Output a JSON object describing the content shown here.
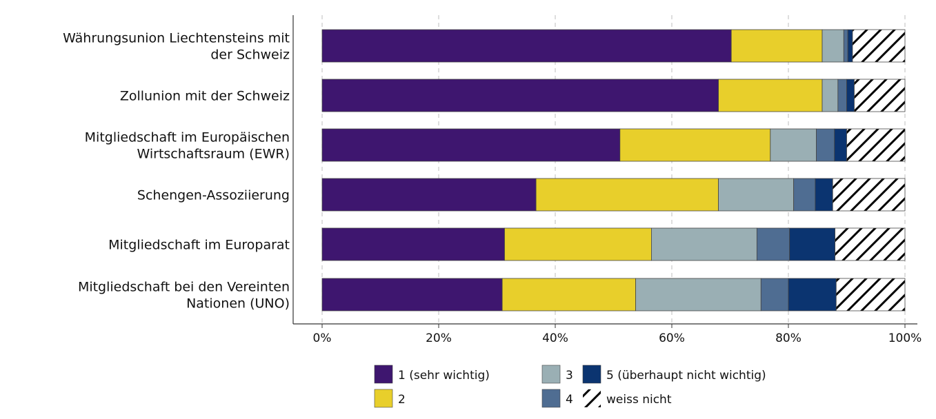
{
  "chart_data": {
    "type": "bar",
    "orientation": "horizontal",
    "stacked": true,
    "percent_scale": true,
    "categories": [
      "Währungsunion Liechtensteins mit der Schweiz",
      "Zollunion mit der Schweiz",
      "Mitgliedschaft im Europäischen Wirtschaftsraum (EWR)",
      "Schengen-Assoziierung",
      "Mitgliedschaft im Europarat",
      "Mitgliedschaft bei den Vereinten Nationen (UNO)"
    ],
    "series": [
      {
        "name": "1 (sehr wichtig)",
        "color": "#3e166f",
        "values": [
          70.2,
          68.0,
          51.1,
          36.7,
          31.3,
          30.9
        ]
      },
      {
        "name": "2",
        "color": "#e8cf2b",
        "values": [
          15.6,
          17.8,
          25.8,
          31.3,
          25.2,
          22.9
        ]
      },
      {
        "name": "3",
        "color": "#9aafb4",
        "values": [
          3.7,
          2.7,
          7.9,
          12.9,
          18.1,
          21.5
        ]
      },
      {
        "name": "4",
        "color": "#4f6d92",
        "values": [
          0.7,
          1.5,
          3.1,
          3.7,
          5.6,
          4.7
        ]
      },
      {
        "name": "5 (überhaupt nicht wichtig)",
        "color": "#0b3470",
        "values": [
          0.8,
          1.3,
          2.1,
          3.0,
          7.8,
          8.2
        ]
      },
      {
        "name": "weiss nicht",
        "color": "#ffffff",
        "pattern": "hatch",
        "values": [
          9.0,
          8.7,
          10.0,
          12.4,
          12.0,
          11.8
        ]
      }
    ],
    "xlim": [
      0,
      100
    ],
    "x_ticks": [
      0,
      20,
      40,
      60,
      80,
      100
    ],
    "x_tick_labels": [
      "0%",
      "20%",
      "40%",
      "60%",
      "80%",
      "100%"
    ],
    "grid": "vertical dashed",
    "legend": "bottom-center",
    "title": "",
    "xlabel": "",
    "ylabel": ""
  },
  "legend_items": [
    {
      "label": "1 (sehr wichtig)",
      "series": 0
    },
    {
      "label": "3",
      "series": 2
    },
    {
      "label": "5 (überhaupt nicht wichtig)",
      "series": 4
    },
    {
      "label": "2",
      "series": 1
    },
    {
      "label": "4",
      "series": 3
    },
    {
      "label": "weiss nicht",
      "series": 5
    }
  ]
}
